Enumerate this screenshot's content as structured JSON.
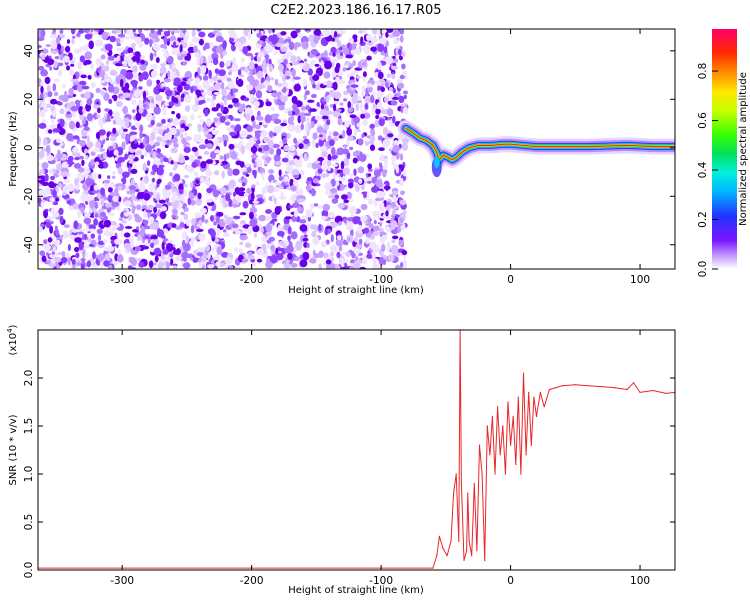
{
  "title": "C2E2.2023.186.16.17.R05",
  "spectrogram": {
    "xlabel": "Height of straight line (km)",
    "ylabel": "Frequency (Hz)",
    "xlim": [
      -365,
      127
    ],
    "ylim": [
      -50,
      49
    ],
    "xticks": [
      -300,
      -200,
      -100,
      0,
      100
    ],
    "yticks": [
      -40,
      -20,
      0,
      20,
      40
    ],
    "noise_until_km": -81,
    "colorbar": {
      "label": "Normalized spectral amplitude",
      "ticks": [
        "0.0",
        "0.2",
        "0.4",
        "0.6",
        "0.8"
      ],
      "tick_values": [
        0.0,
        0.2,
        0.4,
        0.6,
        0.8
      ],
      "range": [
        0,
        0.97
      ]
    },
    "ridge": [
      [
        -81,
        8
      ],
      [
        -75,
        6
      ],
      [
        -70,
        4
      ],
      [
        -65,
        3
      ],
      [
        -60,
        1
      ],
      [
        -57,
        -2
      ],
      [
        -55,
        -5
      ],
      [
        -52,
        -3
      ],
      [
        -48,
        -4
      ],
      [
        -45,
        -5
      ],
      [
        -42,
        -4
      ],
      [
        -38,
        -2
      ],
      [
        -32,
        0
      ],
      [
        -25,
        1
      ],
      [
        -15,
        1
      ],
      [
        -5,
        1.5
      ],
      [
        0,
        1.5
      ],
      [
        20,
        0.5
      ],
      [
        60,
        0.5
      ],
      [
        90,
        1
      ],
      [
        110,
        0.5
      ],
      [
        127,
        0.5
      ]
    ],
    "colors": {
      "noise": "#6a00e8",
      "ridge_core": "#ff2a00"
    }
  },
  "chart_data": {
    "type": "line",
    "xlabel": "Height of straight line (km)",
    "ylabel": "SNR (10 * v/v)",
    "y_multiplier_label": "(x10",
    "y_multiplier_exp": "4",
    "xlim": [
      -365,
      127
    ],
    "ylim": [
      0,
      2.5
    ],
    "xticks": [
      -300,
      -200,
      -100,
      0,
      100
    ],
    "yticks": [
      0.0,
      0.5,
      1.0,
      1.5,
      2.0
    ],
    "ytick_labels": [
      "0.0",
      "0.5",
      "1.0",
      "1.5",
      "2.0"
    ],
    "line_color": "#e8262b",
    "points": [
      [
        -365,
        0.02
      ],
      [
        -300,
        0.02
      ],
      [
        -200,
        0.02
      ],
      [
        -100,
        0.02
      ],
      [
        -60,
        0.02
      ],
      [
        -57,
        0.15
      ],
      [
        -55,
        0.35
      ],
      [
        -52,
        0.22
      ],
      [
        -49,
        0.15
      ],
      [
        -46,
        0.3
      ],
      [
        -44,
        0.8
      ],
      [
        -42,
        1.0
      ],
      [
        -40,
        0.3
      ],
      [
        -39,
        2.5
      ],
      [
        -38,
        0.9
      ],
      [
        -36,
        0.1
      ],
      [
        -34,
        0.2
      ],
      [
        -33,
        0.8
      ],
      [
        -32,
        0.3
      ],
      [
        -30,
        0.15
      ],
      [
        -28,
        0.9
      ],
      [
        -26,
        0.2
      ],
      [
        -24,
        1.3
      ],
      [
        -22,
        1.0
      ],
      [
        -20,
        0.1
      ],
      [
        -18,
        1.5
      ],
      [
        -16,
        1.2
      ],
      [
        -14,
        1.6
      ],
      [
        -12,
        1.0
      ],
      [
        -10,
        1.7
      ],
      [
        -8,
        1.2
      ],
      [
        -6,
        1.5
      ],
      [
        -4,
        1.0
      ],
      [
        -2,
        1.75
      ],
      [
        0,
        1.3
      ],
      [
        2,
        1.6
      ],
      [
        4,
        1.1
      ],
      [
        6,
        1.8
      ],
      [
        8,
        1.0
      ],
      [
        10,
        2.05
      ],
      [
        12,
        1.2
      ],
      [
        14,
        1.85
      ],
      [
        16,
        1.3
      ],
      [
        18,
        1.8
      ],
      [
        20,
        1.6
      ],
      [
        23,
        1.85
      ],
      [
        26,
        1.7
      ],
      [
        30,
        1.88
      ],
      [
        35,
        1.9
      ],
      [
        40,
        1.92
      ],
      [
        50,
        1.93
      ],
      [
        60,
        1.92
      ],
      [
        70,
        1.91
      ],
      [
        80,
        1.9
      ],
      [
        90,
        1.88
      ],
      [
        95,
        1.95
      ],
      [
        100,
        1.85
      ],
      [
        110,
        1.87
      ],
      [
        120,
        1.84
      ],
      [
        127,
        1.85
      ]
    ]
  }
}
